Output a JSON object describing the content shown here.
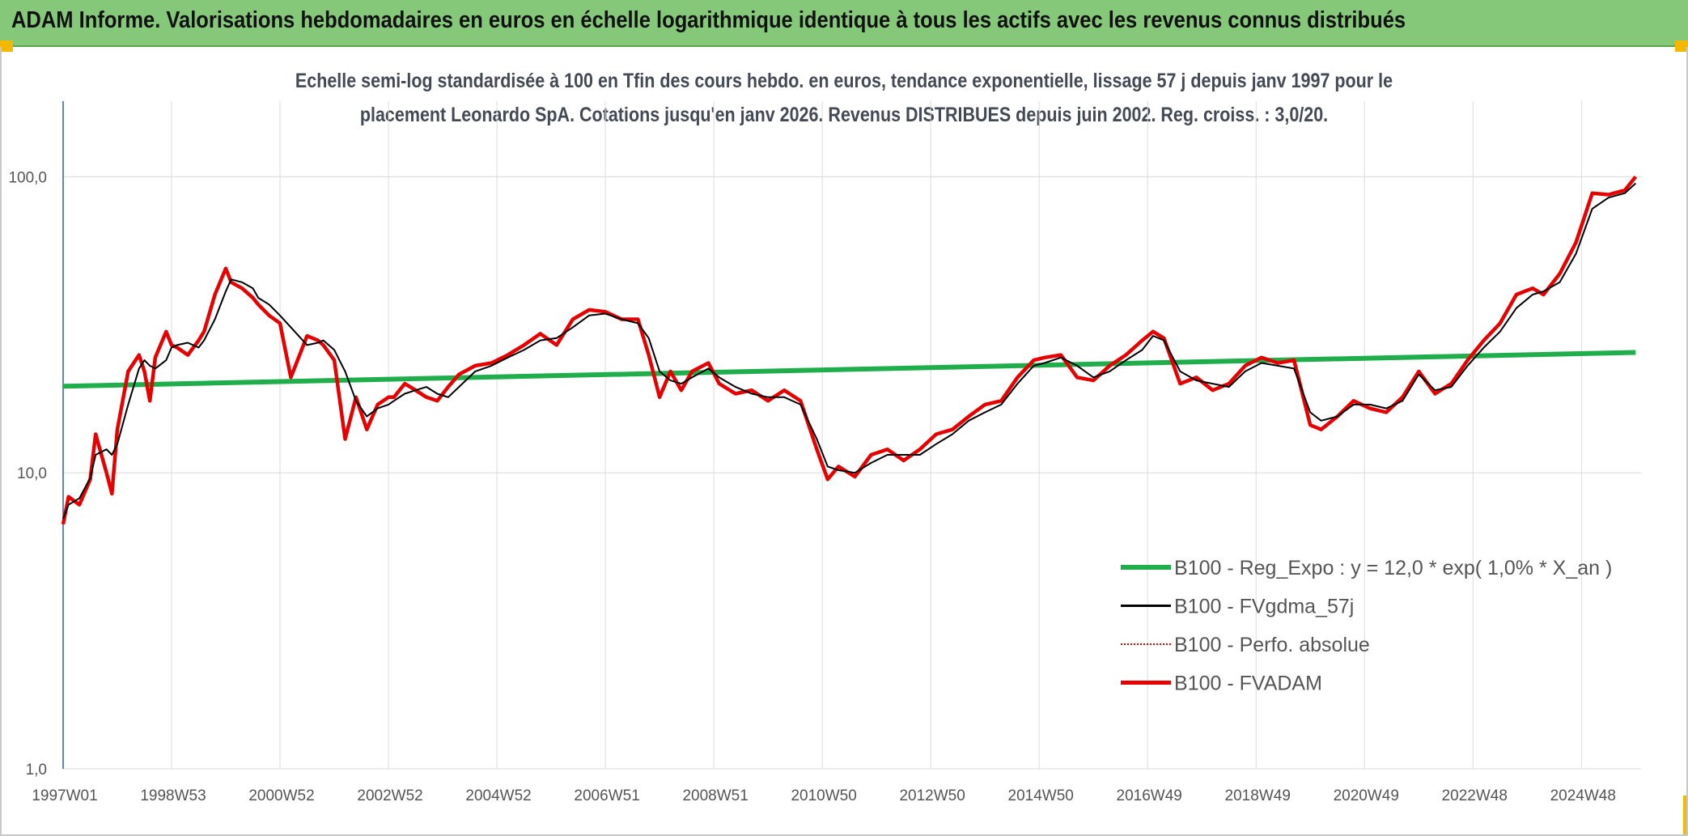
{
  "banner": {
    "title": "ADAM Informe. Valorisations hebdomadaires en euros en échelle logarithmique identique à tous les actifs avec les revenus connus distribués",
    "accent_color": "#86c87a",
    "corner_color": "#f5b800"
  },
  "chart_data": {
    "type": "line",
    "subtitle_lines": [
      "Echelle semi-log standardisée à 100 en Tfin des cours hebdo. en euros, tendance exponentielle, lissage 57 j depuis janv 1997 pour le",
      "placement Leonardo SpA. Cotations jusqu'en janv 2026. Revenus DISTRIBUES depuis juin 2002. Reg. croiss. : 3,0/20."
    ],
    "y_scale": "log",
    "ylim": [
      1,
      180
    ],
    "y_ticks": [
      {
        "value": 1,
        "label": "1,0"
      },
      {
        "value": 10,
        "label": "10,0"
      },
      {
        "value": 100,
        "label": "100,0"
      }
    ],
    "x_ticks": [
      "1997W01",
      "1998W53",
      "2000W52",
      "2002W52",
      "2004W52",
      "2006W51",
      "2008W51",
      "2010W50",
      "2012W50",
      "2014W50",
      "2016W49",
      "2018W49",
      "2020W49",
      "2022W48",
      "2024W48"
    ],
    "x_tick_years": [
      1997.0,
      1999.0,
      2001.0,
      2003.0,
      2005.0,
      2007.0,
      2009.0,
      2011.0,
      2013.0,
      2015.0,
      2017.0,
      2019.0,
      2021.0,
      2023.0,
      2025.0
    ],
    "xlim": [
      1997.0,
      2026.1
    ],
    "grid": "vertical and horizontal",
    "legend_position": "lower-right",
    "x": [
      1997.0,
      1997.1,
      1997.3,
      1997.5,
      1997.6,
      1997.8,
      1997.9,
      1998.0,
      1998.2,
      1998.4,
      1998.5,
      1998.6,
      1998.7,
      1998.9,
      1999.0,
      1999.1,
      1999.3,
      1999.5,
      1999.6,
      1999.8,
      2000.0,
      2000.1,
      2000.3,
      2000.5,
      2000.6,
      2000.8,
      2001.0,
      2001.2,
      2001.5,
      2001.7,
      2001.8,
      2002.0,
      2002.2,
      2002.4,
      2002.6,
      2002.8,
      2003.0,
      2003.1,
      2003.3,
      2003.5,
      2003.7,
      2003.9,
      2004.1,
      2004.3,
      2004.6,
      2004.9,
      2005.2,
      2005.5,
      2005.8,
      2006.1,
      2006.4,
      2006.7,
      2007.0,
      2007.3,
      2007.6,
      2007.8,
      2008.0,
      2008.2,
      2008.4,
      2008.6,
      2008.9,
      2009.1,
      2009.4,
      2009.7,
      2010.0,
      2010.3,
      2010.6,
      2010.9,
      2011.1,
      2011.3,
      2011.6,
      2011.9,
      2012.2,
      2012.5,
      2012.8,
      2013.1,
      2013.4,
      2013.7,
      2014.0,
      2014.3,
      2014.6,
      2014.9,
      2015.1,
      2015.4,
      2015.7,
      2016.0,
      2016.3,
      2016.6,
      2016.9,
      2017.1,
      2017.3,
      2017.6,
      2017.9,
      2018.2,
      2018.5,
      2018.8,
      2019.1,
      2019.4,
      2019.7,
      2020.0,
      2020.2,
      2020.5,
      2020.8,
      2021.1,
      2021.4,
      2021.7,
      2022.0,
      2022.3,
      2022.6,
      2022.9,
      2023.2,
      2023.5,
      2023.8,
      2024.1,
      2024.3,
      2024.6,
      2024.9,
      2025.2,
      2025.5,
      2025.8,
      2026.0
    ],
    "series": [
      {
        "name": "B100 - Reg_Expo : y = 12,0 * exp( 1,0% *  X_an )",
        "color": "#1fae4b",
        "style": "solid-thick",
        "values_log_linear": {
          "start": 19.6,
          "end": 25.5
        }
      },
      {
        "name": "B100 - FVgdma_57j",
        "color": "#000000",
        "style": "solid-thin",
        "values": [
          7.0,
          7.8,
          8.2,
          9.6,
          11.5,
          12.0,
          11.5,
          12.5,
          17.0,
          22.5,
          24.0,
          23.0,
          22.5,
          24.0,
          26.5,
          27.0,
          27.5,
          26.5,
          28.0,
          33.0,
          41.0,
          45.0,
          44.0,
          42.0,
          39.0,
          37.0,
          34.0,
          31.0,
          27.0,
          27.5,
          28.0,
          26.0,
          22.0,
          17.5,
          15.5,
          16.5,
          17.0,
          17.5,
          18.5,
          19.0,
          19.5,
          18.5,
          18.0,
          19.5,
          22.0,
          23.0,
          24.5,
          26.0,
          28.0,
          28.5,
          31.0,
          34.0,
          34.5,
          33.0,
          32.0,
          28.5,
          22.0,
          20.5,
          20.0,
          21.0,
          22.5,
          21.0,
          19.5,
          18.5,
          18.0,
          18.0,
          17.0,
          13.0,
          10.5,
          10.2,
          10.0,
          10.8,
          11.5,
          11.5,
          11.5,
          12.5,
          13.5,
          15.0,
          16.0,
          17.0,
          20.0,
          23.0,
          23.5,
          24.5,
          23.0,
          21.0,
          22.0,
          24.0,
          26.0,
          29.0,
          28.0,
          22.0,
          20.5,
          20.0,
          19.5,
          22.0,
          23.5,
          23.0,
          22.5,
          16.0,
          15.0,
          15.5,
          17.0,
          17.0,
          16.5,
          17.5,
          21.5,
          19.0,
          19.5,
          23.0,
          26.5,
          30.0,
          36.0,
          40.0,
          41.0,
          44.0,
          55.0,
          78.0,
          85.0,
          88.0,
          95.0
        ]
      },
      {
        "name": "B100 - Perfo. absolue",
        "color": "#e60000",
        "style": "dotted"
      },
      {
        "name": "B100 - FVADAM",
        "color": "#e60000",
        "style": "solid-thick",
        "values": [
          6.7,
          8.3,
          7.8,
          9.5,
          13.5,
          10.0,
          8.5,
          14.0,
          22.0,
          25.0,
          22.0,
          17.5,
          24.5,
          30.0,
          27.0,
          26.5,
          25.0,
          28.0,
          30.0,
          40.0,
          49.0,
          44.0,
          42.0,
          39.0,
          37.0,
          34.0,
          32.0,
          21.0,
          29.0,
          28.0,
          27.0,
          24.0,
          13.0,
          18.0,
          14.0,
          17.0,
          18.0,
          18.0,
          20.0,
          19.0,
          18.0,
          17.5,
          19.5,
          21.5,
          23.0,
          23.5,
          25.0,
          27.0,
          29.5,
          27.0,
          33.0,
          35.5,
          35.0,
          33.0,
          33.0,
          25.0,
          18.0,
          22.0,
          19.0,
          22.0,
          23.5,
          20.0,
          18.5,
          19.0,
          17.5,
          19.0,
          17.5,
          12.0,
          9.5,
          10.5,
          9.7,
          11.5,
          12.0,
          11.0,
          12.0,
          13.5,
          14.0,
          15.5,
          17.0,
          17.5,
          21.0,
          24.0,
          24.5,
          25.0,
          21.0,
          20.5,
          23.0,
          25.0,
          28.0,
          30.0,
          28.5,
          20.0,
          21.0,
          19.0,
          20.0,
          23.0,
          24.5,
          23.5,
          24.0,
          14.5,
          14.0,
          15.5,
          17.5,
          16.5,
          16.0,
          18.0,
          22.0,
          18.5,
          20.0,
          24.0,
          28.0,
          32.0,
          40.0,
          42.0,
          40.0,
          47.0,
          60.0,
          88.0,
          87.0,
          90.0,
          100.0
        ]
      }
    ]
  }
}
